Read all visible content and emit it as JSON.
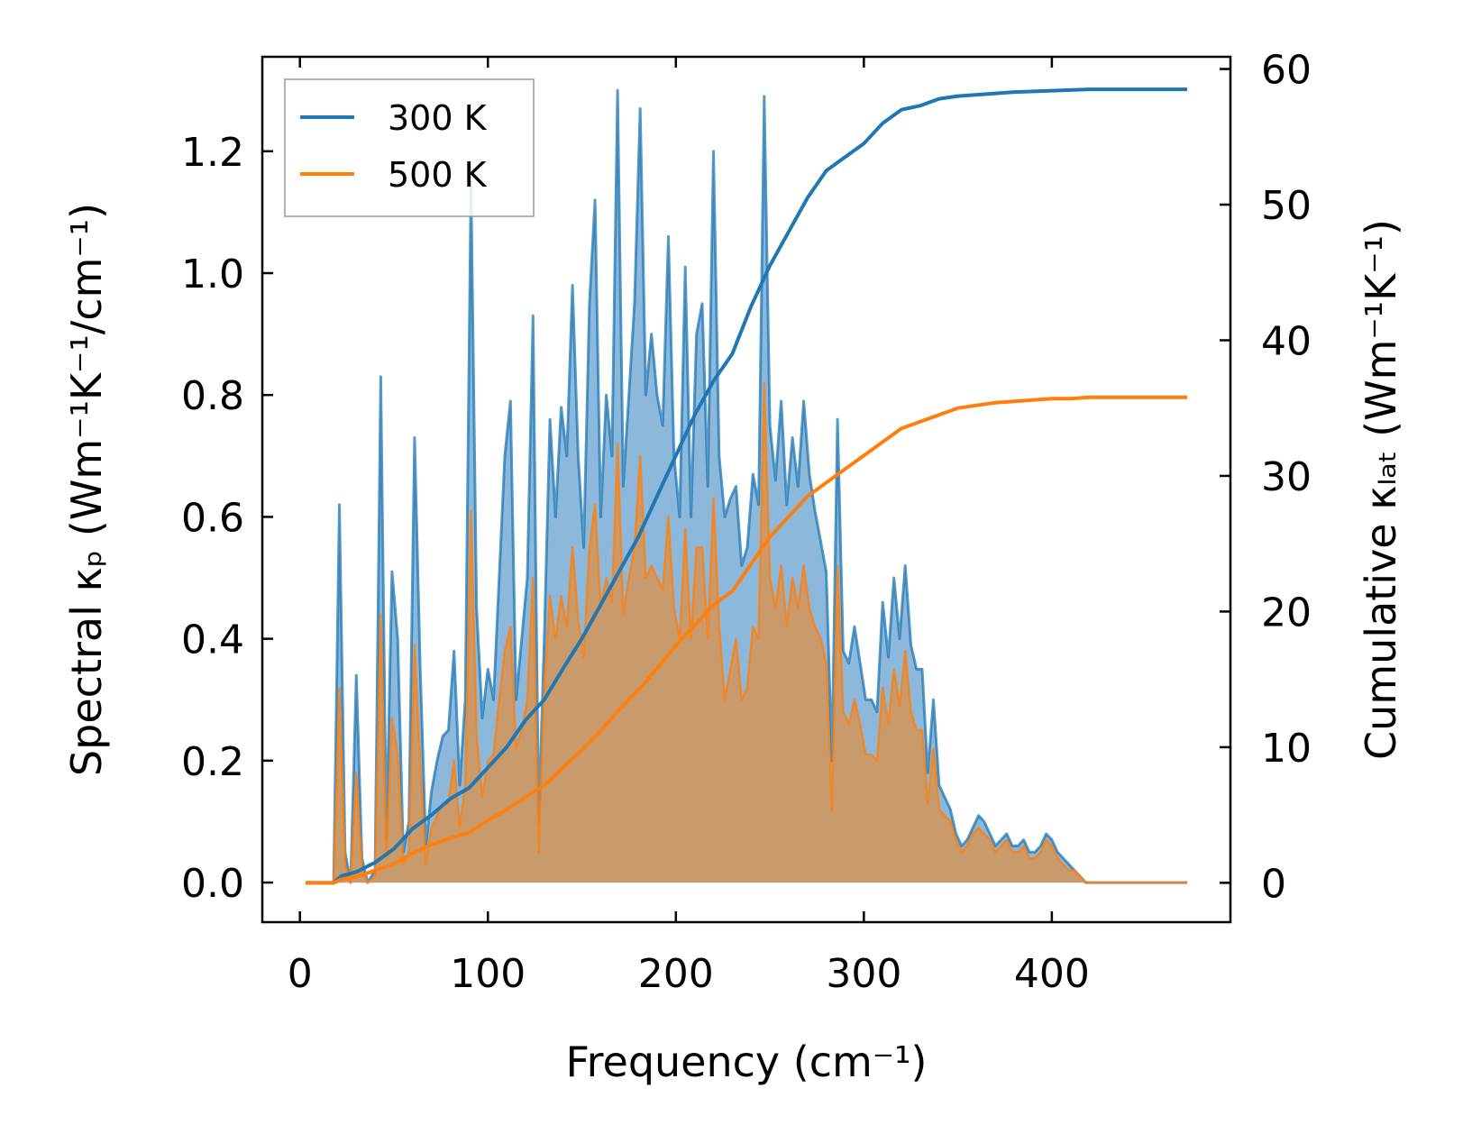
{
  "chart_data": {
    "type": "line",
    "xlabel": "Frequency (cm⁻¹)",
    "ylabel_left": "Spectral κₚ (Wm⁻¹K⁻¹/cm⁻¹)",
    "ylabel_right": "Cumulative κₗₐₜ (Wm⁻¹K⁻¹)",
    "xlim": [
      -20,
      495
    ],
    "ylim_left": [
      -0.065,
      1.355
    ],
    "ylim_right": [
      -2.9,
      60.9
    ],
    "x_ticks": [
      0,
      100,
      200,
      300,
      400
    ],
    "x_tick_labels": [
      "0",
      "100",
      "200",
      "300",
      "400"
    ],
    "y_left_ticks": [
      0.0,
      0.2,
      0.4,
      0.6,
      0.8,
      1.0,
      1.2
    ],
    "y_left_tick_labels": [
      "0.0",
      "0.2",
      "0.4",
      "0.6",
      "0.8",
      "1.0",
      "1.2"
    ],
    "y_right_ticks": [
      0,
      10,
      20,
      30,
      40,
      50,
      60
    ],
    "y_right_tick_labels": [
      "0",
      "10",
      "20",
      "30",
      "40",
      "50",
      "60"
    ],
    "legend": {
      "position": "top-left",
      "entries": [
        "300 K",
        "500 K"
      ]
    },
    "colors": {
      "300K": "#1f77b4",
      "500K": "#ff7f0e",
      "fill300": "#7fb0d8",
      "fill500": "#c99a6b"
    },
    "spectral_x": [
      3,
      18,
      21,
      24,
      27,
      30,
      33,
      36,
      40,
      43,
      46,
      49,
      52,
      55,
      58,
      61,
      64,
      67,
      70,
      73,
      76,
      79,
      82,
      85,
      88,
      91,
      94,
      97,
      100,
      103,
      106,
      109,
      112,
      115,
      118,
      121,
      124,
      127,
      130,
      133,
      136,
      139,
      142,
      145,
      148,
      151,
      154,
      157,
      160,
      163,
      166,
      169,
      172,
      175,
      178,
      181,
      184,
      187,
      190,
      193,
      196,
      199,
      202,
      205,
      208,
      211,
      214,
      217,
      220,
      223,
      226,
      229,
      232,
      235,
      238,
      241,
      244,
      247,
      250,
      253,
      256,
      259,
      262,
      265,
      268,
      271,
      274,
      277,
      280,
      283,
      286,
      289,
      292,
      295,
      298,
      301,
      304,
      307,
      310,
      313,
      316,
      319,
      322,
      325,
      328,
      331,
      334,
      337,
      340,
      343,
      346,
      349,
      352,
      355,
      358,
      361,
      364,
      367,
      370,
      373,
      376,
      379,
      382,
      385,
      388,
      391,
      394,
      397,
      400,
      403,
      406,
      409,
      412,
      415,
      418,
      421,
      424,
      427,
      430,
      433,
      436,
      439,
      442,
      445,
      448,
      451,
      454,
      457,
      460,
      463,
      466,
      469,
      472
    ],
    "spectral_300K": [
      0,
      0,
      0.62,
      0.05,
      0,
      0.34,
      0.04,
      0,
      0.02,
      0.83,
      0.07,
      0.51,
      0.4,
      0.05,
      0.1,
      0.73,
      0.35,
      0.06,
      0.15,
      0.2,
      0.24,
      0.25,
      0.38,
      0.16,
      0.3,
      1.15,
      0.45,
      0.27,
      0.35,
      0.3,
      0.5,
      0.7,
      0.79,
      0.3,
      0.4,
      0.5,
      0.93,
      0.1,
      0.4,
      0.76,
      0.6,
      0.78,
      0.7,
      0.98,
      0.7,
      0.55,
      0.95,
      1.12,
      0.6,
      0.8,
      0.7,
      1.3,
      0.65,
      0.8,
      0.95,
      1.27,
      0.8,
      0.9,
      0.8,
      0.75,
      1.06,
      0.7,
      0.6,
      1.01,
      0.6,
      0.9,
      0.95,
      0.65,
      1.2,
      0.7,
      0.6,
      0.63,
      0.65,
      0.52,
      0.55,
      0.67,
      0.62,
      1.29,
      0.75,
      0.66,
      0.79,
      0.62,
      0.73,
      0.65,
      0.79,
      0.67,
      0.61,
      0.56,
      0.51,
      0.2,
      0.76,
      0.38,
      0.36,
      0.42,
      0.36,
      0.3,
      0.3,
      0.28,
      0.46,
      0.37,
      0.5,
      0.4,
      0.52,
      0.39,
      0.35,
      0.35,
      0.18,
      0.3,
      0.16,
      0.14,
      0.12,
      0.08,
      0.06,
      0.07,
      0.09,
      0.11,
      0.1,
      0.08,
      0.06,
      0.07,
      0.08,
      0.06,
      0.06,
      0.07,
      0.05,
      0.05,
      0.06,
      0.08,
      0.07,
      0.05,
      0.04,
      0.03,
      0.02,
      0.01,
      0,
      0,
      0,
      0,
      0,
      0,
      0,
      0,
      0,
      0,
      0,
      0,
      0,
      0,
      0,
      0,
      0,
      0,
      0
    ],
    "spectral_500K": [
      0,
      0,
      0.32,
      0.03,
      0,
      0.18,
      0.02,
      0,
      0.01,
      0.44,
      0.04,
      0.27,
      0.21,
      0.03,
      0.05,
      0.39,
      0.19,
      0.03,
      0.09,
      0.11,
      0.13,
      0.13,
      0.2,
      0.09,
      0.16,
      0.61,
      0.24,
      0.14,
      0.2,
      0.21,
      0.3,
      0.38,
      0.42,
      0.22,
      0.25,
      0.3,
      0.5,
      0.05,
      0.32,
      0.47,
      0.4,
      0.47,
      0.42,
      0.55,
      0.43,
      0.37,
      0.55,
      0.62,
      0.45,
      0.5,
      0.46,
      0.72,
      0.44,
      0.5,
      0.55,
      0.7,
      0.5,
      0.52,
      0.5,
      0.48,
      0.6,
      0.45,
      0.4,
      0.58,
      0.4,
      0.55,
      0.55,
      0.4,
      0.63,
      0.42,
      0.3,
      0.35,
      0.4,
      0.3,
      0.32,
      0.42,
      0.4,
      0.82,
      0.5,
      0.45,
      0.52,
      0.42,
      0.5,
      0.45,
      0.52,
      0.45,
      0.42,
      0.4,
      0.36,
      0.12,
      0.52,
      0.28,
      0.26,
      0.3,
      0.26,
      0.21,
      0.21,
      0.2,
      0.32,
      0.26,
      0.35,
      0.29,
      0.38,
      0.28,
      0.25,
      0.25,
      0.13,
      0.22,
      0.12,
      0.11,
      0.1,
      0.07,
      0.05,
      0.06,
      0.08,
      0.09,
      0.08,
      0.07,
      0.05,
      0.06,
      0.07,
      0.05,
      0.05,
      0.06,
      0.04,
      0.04,
      0.05,
      0.07,
      0.06,
      0.04,
      0.03,
      0.02,
      0.02,
      0.01,
      0,
      0,
      0,
      0,
      0,
      0,
      0,
      0,
      0,
      0,
      0,
      0,
      0,
      0,
      0,
      0,
      0,
      0,
      0
    ],
    "cumulative_x": [
      3,
      18,
      22,
      30,
      40,
      50,
      60,
      70,
      80,
      90,
      100,
      110,
      120,
      130,
      140,
      150,
      160,
      170,
      180,
      190,
      200,
      210,
      220,
      230,
      240,
      250,
      260,
      270,
      280,
      290,
      300,
      310,
      320,
      330,
      340,
      350,
      360,
      370,
      380,
      390,
      400,
      410,
      420,
      430,
      440,
      450,
      460,
      472
    ],
    "cumulative_300K": [
      0,
      0,
      0.5,
      0.8,
      1.5,
      2.5,
      4,
      5,
      6.2,
      7,
      8.5,
      10,
      12,
      13.5,
      15.8,
      18,
      20.5,
      23,
      25.5,
      28.5,
      31.5,
      34.5,
      37,
      39,
      42.5,
      45.5,
      48,
      50.5,
      52.5,
      53.5,
      54.5,
      56,
      57,
      57.3,
      57.8,
      58,
      58.1,
      58.2,
      58.3,
      58.35,
      58.4,
      58.45,
      58.5,
      58.5,
      58.5,
      58.5,
      58.5,
      58.5
    ],
    "cumulative_500K": [
      0,
      0,
      0.25,
      0.45,
      0.9,
      1.4,
      2.2,
      2.8,
      3.3,
      3.7,
      4.6,
      5.4,
      6.3,
      7.2,
      8.5,
      9.8,
      11.2,
      12.8,
      14.2,
      15.8,
      17.5,
      19,
      20.5,
      21.5,
      23.5,
      25.5,
      27,
      28.5,
      29.5,
      30.5,
      31.5,
      32.5,
      33.5,
      34,
      34.5,
      35,
      35.2,
      35.4,
      35.5,
      35.6,
      35.7,
      35.7,
      35.8,
      35.8,
      35.8,
      35.8,
      35.8,
      35.8
    ]
  }
}
